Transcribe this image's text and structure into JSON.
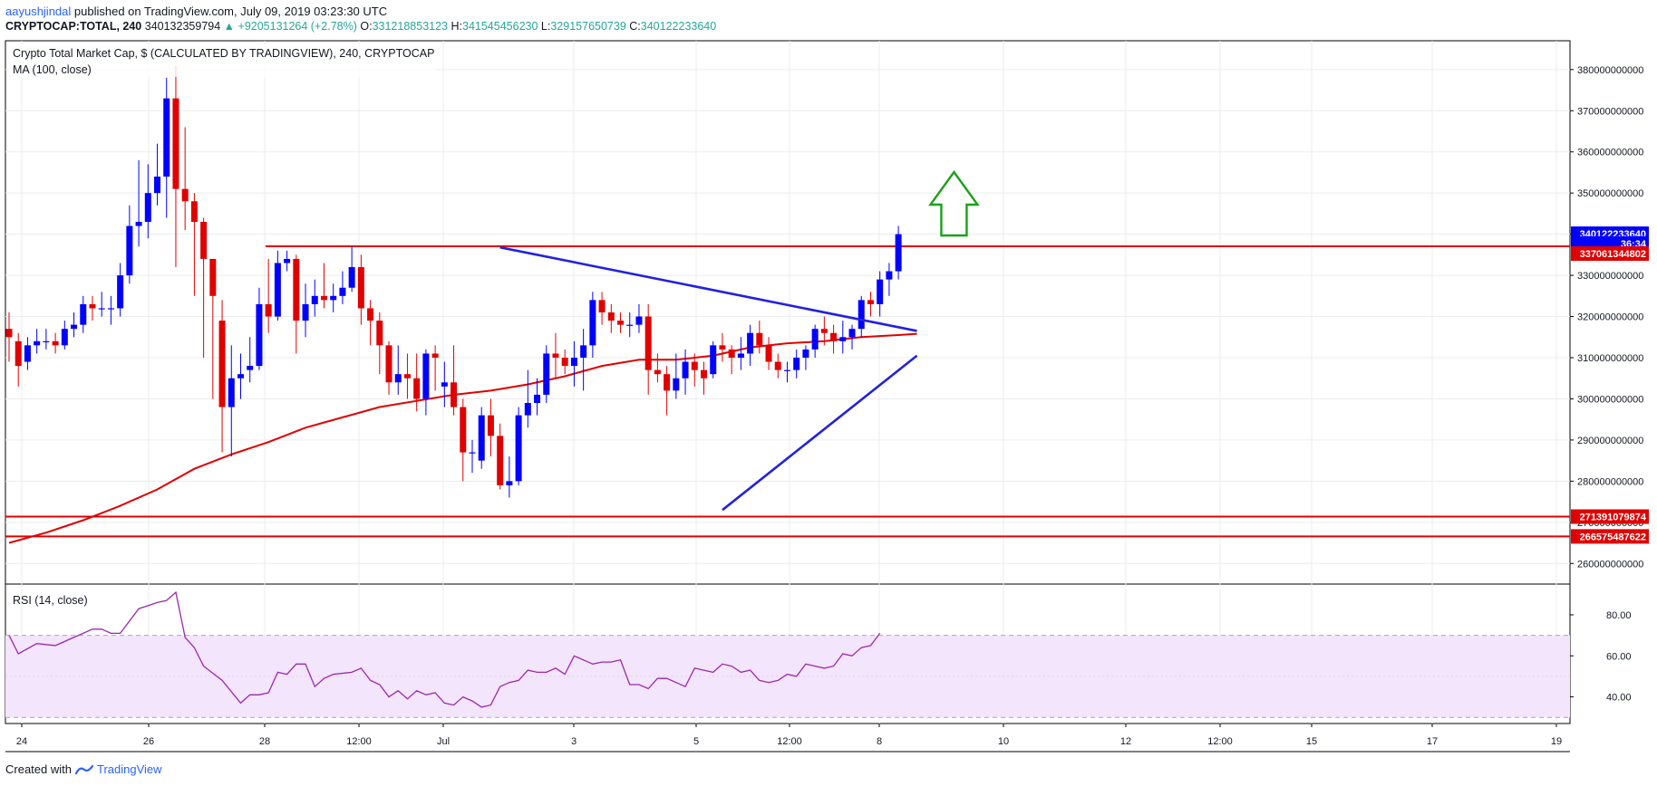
{
  "header": {
    "author": "aayushjindal",
    "published": "published on TradingView.com, July 09, 2019 03:23:30 UTC",
    "symbol": "CRYPTOCAP:TOTAL, 240",
    "last": "340132359794",
    "change": "▲ +9205131264 (+2.78%)",
    "open_label": "O:",
    "open": "331218853123",
    "high_label": "H:",
    "high": "341545456230",
    "low_label": "L:",
    "low": "329157650739",
    "close_label": "C:",
    "close": "340122233640"
  },
  "footer": {
    "created_with": "Created with",
    "brand": "TradingView"
  },
  "colors": {
    "up": "#0000ff",
    "down": "#e00000",
    "ma": "#e00000",
    "trend": "#2222dd",
    "level": "#e00000",
    "rsi": "#9c27b0",
    "rsi_band": "#f3e5fb",
    "arrow": "#1aa01a"
  },
  "chart_data": [
    {
      "type": "candlestick",
      "title": "Crypto Total Market Cap, $ (CALCULATED BY TRADINGVIEW), 240, CRYPTOCAP",
      "indicator": "MA (100, close)",
      "ylim": [
        255000000000,
        387000000000
      ],
      "y_ticks": [
        "260000000000",
        "270000000000",
        "280000000000",
        "290000000000",
        "300000000000",
        "310000000000",
        "320000000000",
        "330000000000",
        "340000000000",
        "350000000000",
        "360000000000",
        "370000000000",
        "380000000000"
      ],
      "x_ticks": [
        "24",
        "26",
        "28",
        "12:00",
        "Jul",
        "3",
        "5",
        "12:00",
        "8",
        "10",
        "12",
        "12:00",
        "15",
        "17",
        "19"
      ],
      "price_tags": [
        {
          "label": "340122233640",
          "value": 340122233640,
          "color": "#0000ff"
        },
        {
          "label": "36:34",
          "value": 337750000000,
          "color": "#0000ff"
        },
        {
          "label": "337061344802",
          "value": 335300000000,
          "color": "#e00000"
        },
        {
          "label": "271391079874",
          "value": 271391079874,
          "color": "#e00000"
        },
        {
          "label": "266575487622",
          "value": 266575487622,
          "color": "#e00000"
        }
      ],
      "horizontal_levels": [
        337061344802,
        271391079874,
        266575487622
      ],
      "trendlines": [
        {
          "from": [
            53,
            336800000000
          ],
          "to": [
            98,
            316500000000
          ]
        },
        {
          "from": [
            77,
            273000000000
          ],
          "to": [
            98,
            310500000000
          ]
        }
      ],
      "arrow": {
        "index": 102,
        "direction": "up"
      },
      "candles": [
        [
          0,
          317,
          315,
          321,
          309
        ],
        [
          1,
          314,
          308,
          316,
          303
        ],
        [
          2,
          309,
          313,
          315,
          307
        ],
        [
          3,
          313,
          314,
          317,
          311
        ],
        [
          4,
          314,
          314,
          317,
          312
        ],
        [
          5,
          314,
          313,
          316,
          311
        ],
        [
          6,
          313,
          317,
          319,
          312
        ],
        [
          7,
          317,
          318,
          321,
          315
        ],
        [
          8,
          318,
          323,
          325,
          316
        ],
        [
          9,
          323,
          322,
          325,
          319
        ],
        [
          10,
          322,
          322,
          326,
          320
        ],
        [
          11,
          322,
          322,
          325,
          318
        ],
        [
          12,
          322,
          330,
          333,
          320
        ],
        [
          13,
          330,
          342,
          347,
          328
        ],
        [
          14,
          342,
          343,
          358,
          337
        ],
        [
          15,
          343,
          350,
          357,
          339
        ],
        [
          16,
          350,
          354,
          362,
          347
        ],
        [
          17,
          354,
          373,
          378,
          344
        ],
        [
          18,
          373,
          351,
          381,
          332
        ],
        [
          19,
          351,
          348,
          366,
          341
        ],
        [
          20,
          348,
          343,
          350,
          325
        ],
        [
          21,
          343,
          334,
          344,
          310
        ],
        [
          22,
          334,
          325,
          333,
          300
        ],
        [
          23,
          319,
          298,
          324,
          287
        ],
        [
          24,
          298,
          305,
          313,
          286
        ],
        [
          25,
          305,
          306,
          311,
          300
        ],
        [
          26,
          307,
          308,
          315,
          304
        ],
        [
          27,
          308,
          323,
          327,
          307
        ],
        [
          28,
          323,
          320,
          334,
          316
        ],
        [
          29,
          320,
          333,
          336,
          319
        ],
        [
          30,
          333,
          334,
          336,
          331
        ],
        [
          31,
          334,
          319,
          335,
          311
        ],
        [
          32,
          319,
          323,
          328,
          315
        ],
        [
          33,
          323,
          325,
          329,
          320
        ],
        [
          34,
          325,
          324,
          333,
          322
        ],
        [
          35,
          324,
          325,
          328,
          321
        ],
        [
          36,
          325,
          327,
          331,
          323
        ],
        [
          37,
          327,
          332,
          337,
          326
        ],
        [
          38,
          332,
          322,
          335,
          318
        ],
        [
          39,
          322,
          319,
          324,
          313
        ],
        [
          40,
          319,
          313,
          321,
          306
        ],
        [
          41,
          313,
          304,
          314,
          301
        ],
        [
          42,
          304,
          306,
          313,
          301
        ],
        [
          43,
          306,
          305,
          311,
          300
        ],
        [
          44,
          305,
          300,
          311,
          297
        ],
        [
          45,
          300,
          311,
          312,
          296
        ],
        [
          46,
          311,
          310,
          313,
          302
        ],
        [
          47,
          303,
          304,
          309,
          298
        ],
        [
          48,
          304,
          298,
          313,
          296
        ],
        [
          49,
          298,
          287,
          300,
          280
        ],
        [
          50,
          287,
          287,
          290,
          282
        ],
        [
          51,
          285,
          296,
          298,
          283
        ],
        [
          52,
          296,
          291,
          300,
          286
        ],
        [
          53,
          291,
          279,
          294,
          278
        ],
        [
          54,
          279,
          280,
          286,
          276
        ],
        [
          55,
          280,
          296,
          298,
          279
        ],
        [
          56,
          296,
          299,
          307,
          293
        ],
        [
          57,
          299,
          301,
          305,
          296
        ],
        [
          58,
          301,
          311,
          313,
          299
        ],
        [
          59,
          311,
          310,
          316,
          305
        ],
        [
          60,
          310,
          308,
          312,
          306
        ],
        [
          61,
          308,
          310,
          314,
          303
        ],
        [
          62,
          310,
          313,
          317,
          302
        ],
        [
          63,
          313,
          324,
          326,
          310
        ],
        [
          64,
          324,
          321,
          326,
          318
        ],
        [
          65,
          321,
          319,
          323,
          316
        ],
        [
          66,
          319,
          318,
          321,
          316
        ],
        [
          67,
          318,
          318,
          321,
          315
        ],
        [
          68,
          318,
          320,
          323,
          316
        ],
        [
          69,
          320,
          307,
          323,
          301
        ],
        [
          70,
          307,
          306,
          311,
          304
        ],
        [
          71,
          306,
          302,
          308,
          296
        ],
        [
          72,
          302,
          305,
          311,
          300
        ],
        [
          73,
          305,
          309,
          312,
          301
        ],
        [
          74,
          309,
          307,
          311,
          303
        ],
        [
          75,
          307,
          305,
          309,
          301
        ],
        [
          76,
          306,
          313,
          314,
          305
        ],
        [
          77,
          313,
          312,
          316,
          309
        ],
        [
          78,
          312,
          310,
          313,
          306
        ],
        [
          79,
          310,
          311,
          315,
          307
        ],
        [
          80,
          311,
          316,
          318,
          308
        ],
        [
          81,
          316,
          313,
          319,
          311
        ],
        [
          82,
          313,
          309,
          315,
          307
        ],
        [
          83,
          309,
          307,
          311,
          305
        ],
        [
          84,
          307,
          307,
          309,
          304
        ],
        [
          85,
          307,
          310,
          312,
          305
        ],
        [
          86,
          310,
          312,
          313,
          307
        ],
        [
          87,
          312,
          317,
          318,
          310
        ],
        [
          88,
          317,
          316,
          320,
          313
        ],
        [
          89,
          316,
          314,
          318,
          311
        ],
        [
          90,
          314,
          315,
          319,
          311
        ],
        [
          91,
          315,
          317,
          318,
          312
        ],
        [
          92,
          317,
          324,
          325,
          315
        ],
        [
          93,
          324,
          323,
          326,
          320
        ],
        [
          94,
          323,
          329,
          331,
          320
        ],
        [
          95,
          329,
          331,
          333,
          325
        ],
        [
          96,
          331,
          340,
          342,
          329
        ]
      ],
      "ma": [
        [
          0,
          265
        ],
        [
          4,
          267.5
        ],
        [
          8,
          270.5
        ],
        [
          12,
          274
        ],
        [
          16,
          278
        ],
        [
          20,
          283
        ],
        [
          24,
          286.5
        ],
        [
          28,
          289.5
        ],
        [
          32,
          293
        ],
        [
          36,
          295.5
        ],
        [
          40,
          298
        ],
        [
          44,
          299.5
        ],
        [
          48,
          301
        ],
        [
          52,
          302
        ],
        [
          56,
          303.5
        ],
        [
          60,
          305.5
        ],
        [
          64,
          308
        ],
        [
          68,
          309.5
        ],
        [
          72,
          309.5
        ],
        [
          76,
          310.5
        ],
        [
          80,
          312.5
        ],
        [
          84,
          313.5
        ],
        [
          88,
          314
        ],
        [
          92,
          315
        ],
        [
          96,
          315.5
        ],
        [
          98,
          315.8
        ]
      ]
    },
    {
      "type": "line",
      "title": "RSI (14, close)",
      "ylim": [
        27,
        95
      ],
      "y_ticks": [
        "40.00",
        "60.00",
        "80.00"
      ],
      "bands": [
        30,
        70
      ],
      "values": [
        [
          0,
          70
        ],
        [
          1,
          61
        ],
        [
          3,
          66
        ],
        [
          5,
          65
        ],
        [
          7,
          69
        ],
        [
          9,
          73
        ],
        [
          10,
          73
        ],
        [
          11,
          71
        ],
        [
          12,
          71
        ],
        [
          14,
          83
        ],
        [
          16,
          86
        ],
        [
          17,
          87
        ],
        [
          18,
          91
        ],
        [
          19,
          69
        ],
        [
          20,
          64
        ],
        [
          21,
          55
        ],
        [
          23,
          48
        ],
        [
          25,
          37
        ],
        [
          26,
          41
        ],
        [
          27,
          41
        ],
        [
          28,
          42
        ],
        [
          29,
          52
        ],
        [
          30,
          51
        ],
        [
          31,
          56
        ],
        [
          32,
          56
        ],
        [
          33,
          45
        ],
        [
          34,
          49
        ],
        [
          35,
          51
        ],
        [
          37,
          52
        ],
        [
          38,
          54
        ],
        [
          39,
          48
        ],
        [
          40,
          46
        ],
        [
          41,
          40
        ],
        [
          42,
          43
        ],
        [
          43,
          39
        ],
        [
          44,
          43
        ],
        [
          45,
          41
        ],
        [
          46,
          42
        ],
        [
          47,
          37
        ],
        [
          48,
          36
        ],
        [
          49,
          40
        ],
        [
          50,
          38
        ],
        [
          51,
          35
        ],
        [
          52,
          36
        ],
        [
          53,
          45
        ],
        [
          54,
          47
        ],
        [
          55,
          48
        ],
        [
          56,
          53
        ],
        [
          57,
          52
        ],
        [
          58,
          52
        ],
        [
          59,
          54
        ],
        [
          60,
          51
        ],
        [
          61,
          60
        ],
        [
          62,
          58
        ],
        [
          63,
          56
        ],
        [
          64,
          57
        ],
        [
          65,
          57
        ],
        [
          66,
          58
        ],
        [
          67,
          46
        ],
        [
          68,
          46
        ],
        [
          69,
          44
        ],
        [
          70,
          49
        ],
        [
          71,
          49
        ],
        [
          72,
          47
        ],
        [
          73,
          45
        ],
        [
          74,
          54
        ],
        [
          75,
          53
        ],
        [
          76,
          52
        ],
        [
          77,
          56
        ],
        [
          78,
          55
        ],
        [
          79,
          52
        ],
        [
          80,
          53
        ],
        [
          81,
          48
        ],
        [
          82,
          47
        ],
        [
          83,
          48
        ],
        [
          84,
          51
        ],
        [
          85,
          50
        ],
        [
          86,
          56
        ],
        [
          87,
          55
        ],
        [
          88,
          54
        ],
        [
          89,
          55
        ],
        [
          90,
          61
        ],
        [
          91,
          60
        ],
        [
          92,
          64
        ],
        [
          93,
          65
        ],
        [
          94,
          71
        ]
      ]
    }
  ]
}
